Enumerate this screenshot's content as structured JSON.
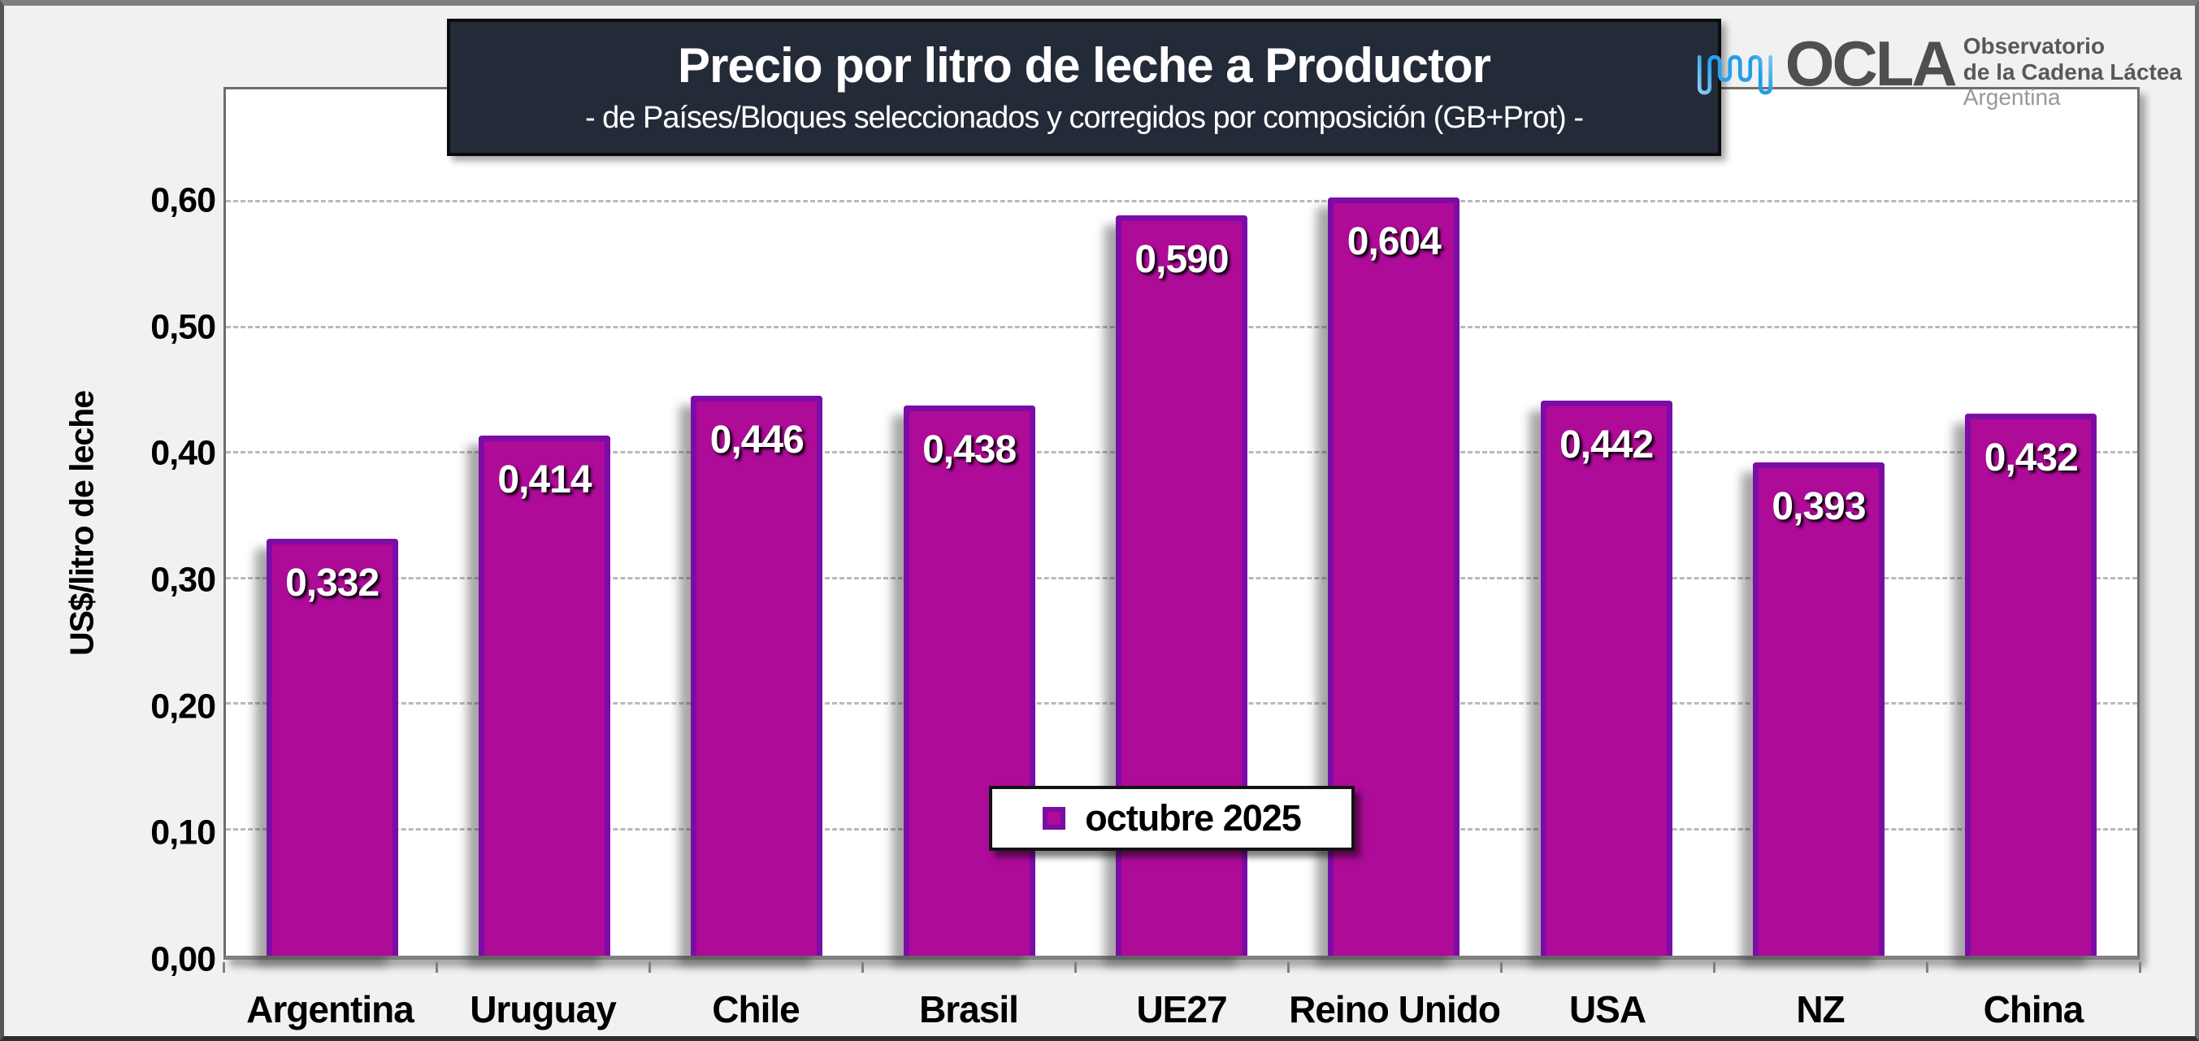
{
  "header": {
    "title": "Precio por litro de leche a Productor",
    "subtitle": "-  de Países/Bloques seleccionados y corregidos por composición (GB+Prot) -",
    "title_bg": "#232b38"
  },
  "logo": {
    "brand": "OCLA",
    "org_line1": "Observatorio",
    "org_line2": "de la Cadena Láctea",
    "org_line3": "Argentina",
    "wave_icon": "pulse-wave-icon",
    "wave_blue": "#1f9be8",
    "wave_light_blue": "#aadcf8"
  },
  "chart_data": {
    "type": "bar",
    "title": "Precio por litro de leche a Productor",
    "subtitle": "-  de Países/Bloques seleccionados y corregidos por composición (GB+Prot) -",
    "categories": [
      "Argentina",
      "Uruguay",
      "Chile",
      "Brasil",
      "UE27",
      "Reino Unido",
      "USA",
      "NZ",
      "China"
    ],
    "values": [
      0.332,
      0.414,
      0.446,
      0.438,
      0.59,
      0.604,
      0.442,
      0.393,
      0.432
    ],
    "value_labels": [
      "0,332",
      "0,414",
      "0,446",
      "0,438",
      "0,590",
      "0,604",
      "0,442",
      "0,393",
      "0,432"
    ],
    "ylabel": "US$/litro de leche",
    "xlabel": "",
    "ylim": [
      0,
      0.69
    ],
    "y_ticks": [
      {
        "value": 0.6,
        "label": "0,60"
      },
      {
        "value": 0.5,
        "label": "0,50"
      },
      {
        "value": 0.4,
        "label": "0,40"
      },
      {
        "value": 0.3,
        "label": "0,30"
      },
      {
        "value": 0.2,
        "label": "0,20"
      },
      {
        "value": 0.1,
        "label": "0,10"
      },
      {
        "value": 0.0,
        "label": "0,00"
      }
    ],
    "grid": "horizontal dashed",
    "grid_color": "#b9b9b9",
    "legend": {
      "label": "octubre 2025",
      "position": "inside bottom center"
    },
    "bar_fill": "#ad0b98",
    "bar_border": "#7b0da6",
    "bar_width_frac": 0.62
  }
}
